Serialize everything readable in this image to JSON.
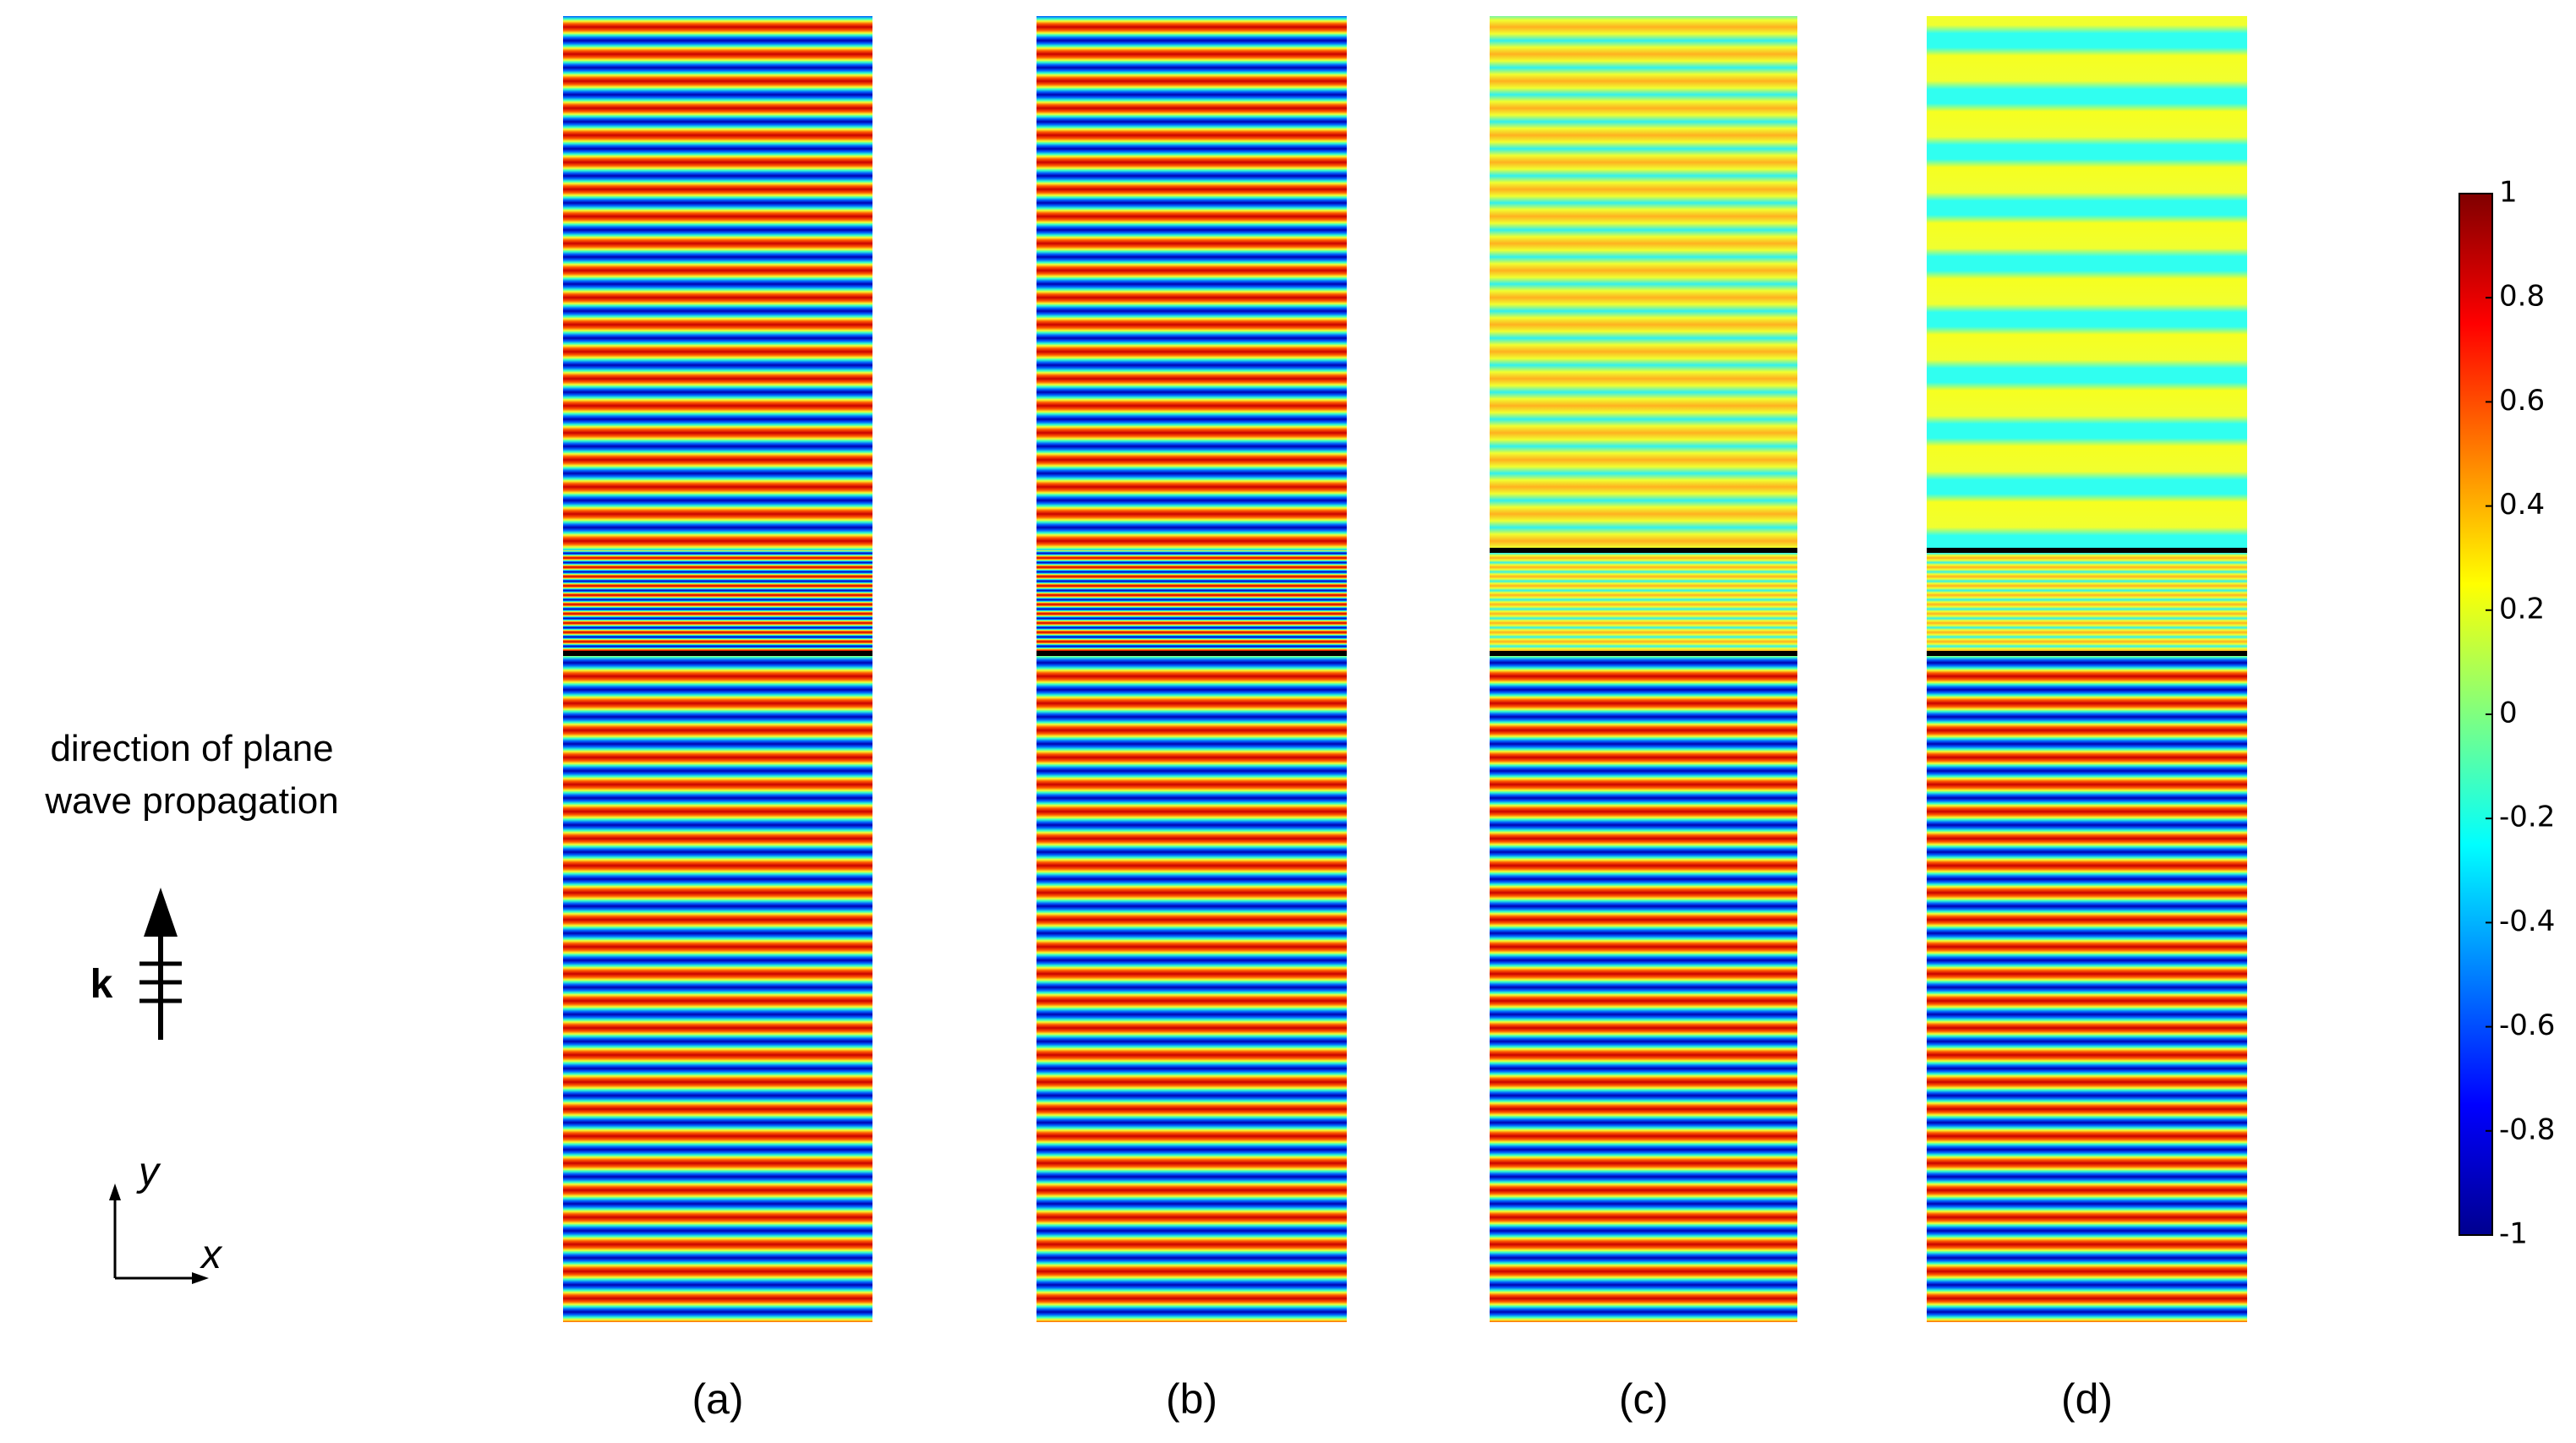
{
  "annotation": {
    "lines": [
      "direction of plane",
      "wave propagation"
    ],
    "k_label": "k"
  },
  "axes_icon": {
    "x": "x",
    "y": "y"
  },
  "panels": [
    {
      "label": "(a)"
    },
    {
      "label": "(b)"
    },
    {
      "label": "(c)"
    },
    {
      "label": "(d)"
    }
  ],
  "colorbar": {
    "lim": [
      -1,
      1
    ],
    "ticks": [
      1,
      0.8,
      0.6,
      0.4,
      0.2,
      0,
      -0.2,
      -0.4,
      -0.6,
      -0.8,
      -1
    ]
  }
}
